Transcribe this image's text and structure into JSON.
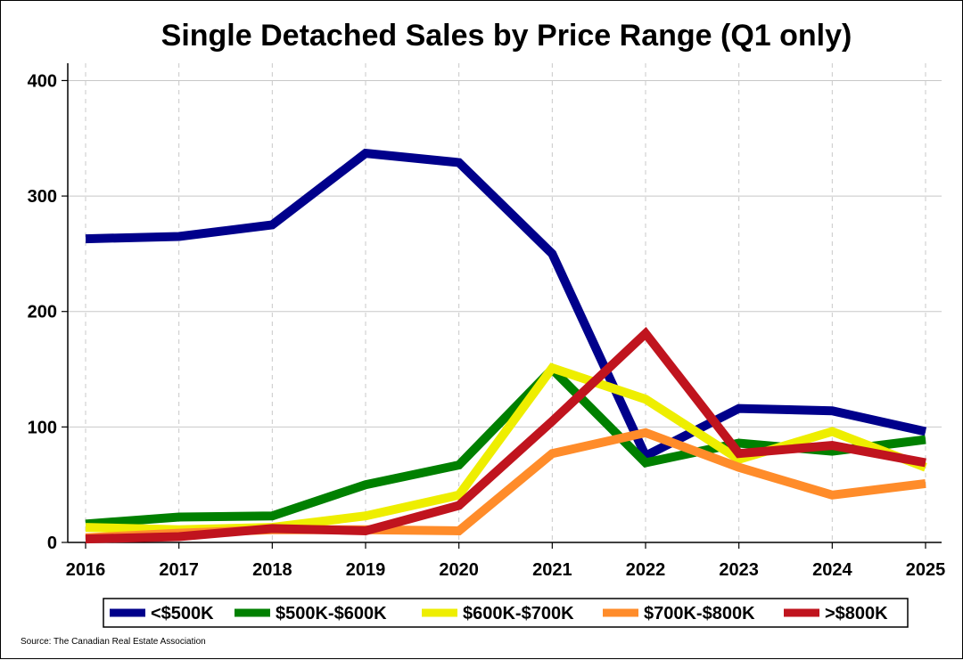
{
  "chart_data": {
    "type": "line",
    "title": "Single Detached Sales by Price Range (Q1 only)",
    "xlabel": "",
    "ylabel": "",
    "x": [
      "2016",
      "2017",
      "2018",
      "2019",
      "2020",
      "2021",
      "2022",
      "2023",
      "2024",
      "2025"
    ],
    "ylim": [
      0,
      415
    ],
    "yticks": [
      0,
      100,
      200,
      300,
      400
    ],
    "grid": true,
    "legend_position": "bottom",
    "series": [
      {
        "name": "<$500K",
        "color": "#00008b",
        "values": [
          263,
          265,
          275,
          337,
          329,
          250,
          75,
          116,
          114,
          96
        ]
      },
      {
        "name": "$500K-$600K",
        "color": "#008000",
        "values": [
          16,
          22,
          23,
          50,
          67,
          150,
          69,
          86,
          79,
          89
        ]
      },
      {
        "name": "$600K-$700K",
        "color": "#eeee00",
        "values": [
          13,
          11,
          13,
          23,
          41,
          151,
          124,
          72,
          96,
          65
        ]
      },
      {
        "name": "$700K-$800K",
        "color": "#ff8c2a",
        "values": [
          4,
          8,
          11,
          11,
          10,
          77,
          95,
          65,
          41,
          51
        ]
      },
      {
        "name": ">$800K",
        "color": "#c0141e",
        "values": [
          3,
          5,
          12,
          10,
          32,
          105,
          181,
          77,
          84,
          69
        ]
      }
    ],
    "source": "Source: The Canadian Real Estate Association"
  }
}
